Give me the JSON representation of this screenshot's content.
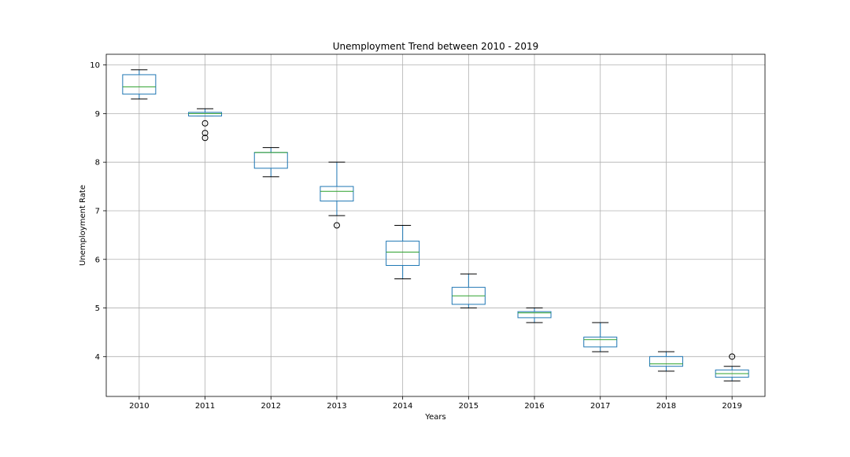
{
  "chart_data": {
    "type": "box",
    "title": "Unemployment Trend between 2010 - 2019",
    "xlabel": "Years",
    "ylabel": "Unemployment Rate",
    "categories": [
      "2010",
      "2011",
      "2012",
      "2013",
      "2014",
      "2015",
      "2016",
      "2017",
      "2018",
      "2019"
    ],
    "yticks": [
      "4",
      "5",
      "6",
      "7",
      "8",
      "9",
      "10"
    ],
    "ylim": [
      3.18,
      10.22
    ],
    "grid": true,
    "boxes": [
      {
        "category": "2010",
        "whisker_low": 9.3,
        "q1": 9.4,
        "median": 9.55,
        "q3": 9.8,
        "whisker_high": 9.9,
        "outliers": []
      },
      {
        "category": "2011",
        "whisker_low": 8.95,
        "q1": 8.95,
        "median": 9.0,
        "q3": 9.025,
        "whisker_high": 9.1,
        "outliers": [
          8.8,
          8.6,
          8.5
        ]
      },
      {
        "category": "2012",
        "whisker_low": 7.7,
        "q1": 7.875,
        "median": 8.2,
        "q3": 8.2,
        "whisker_high": 8.3,
        "outliers": []
      },
      {
        "category": "2013",
        "whisker_low": 6.9,
        "q1": 7.2,
        "median": 7.4,
        "q3": 7.5,
        "whisker_high": 8.0,
        "outliers": [
          6.7
        ]
      },
      {
        "category": "2014",
        "whisker_low": 5.6,
        "q1": 5.875,
        "median": 6.15,
        "q3": 6.375,
        "whisker_high": 6.7,
        "outliers": []
      },
      {
        "category": "2015",
        "whisker_low": 5.0,
        "q1": 5.075,
        "median": 5.25,
        "q3": 5.425,
        "whisker_high": 5.7,
        "outliers": []
      },
      {
        "category": "2016",
        "whisker_low": 4.7,
        "q1": 4.8,
        "median": 4.9,
        "q3": 4.925,
        "whisker_high": 5.0,
        "outliers": []
      },
      {
        "category": "2017",
        "whisker_low": 4.1,
        "q1": 4.2,
        "median": 4.35,
        "q3": 4.4,
        "whisker_high": 4.7,
        "outliers": []
      },
      {
        "category": "2018",
        "whisker_low": 3.7,
        "q1": 3.8,
        "median": 3.85,
        "q3": 4.0,
        "whisker_high": 4.1,
        "outliers": []
      },
      {
        "category": "2019",
        "whisker_low": 3.5,
        "q1": 3.575,
        "median": 3.65,
        "q3": 3.725,
        "whisker_high": 3.8,
        "outliers": [
          4.0
        ]
      }
    ],
    "colors": {
      "box": "#1f77b4",
      "median": "#2ca02c",
      "whisker": "#000000",
      "grid": "#b0b0b0",
      "axes": "#000000"
    }
  }
}
